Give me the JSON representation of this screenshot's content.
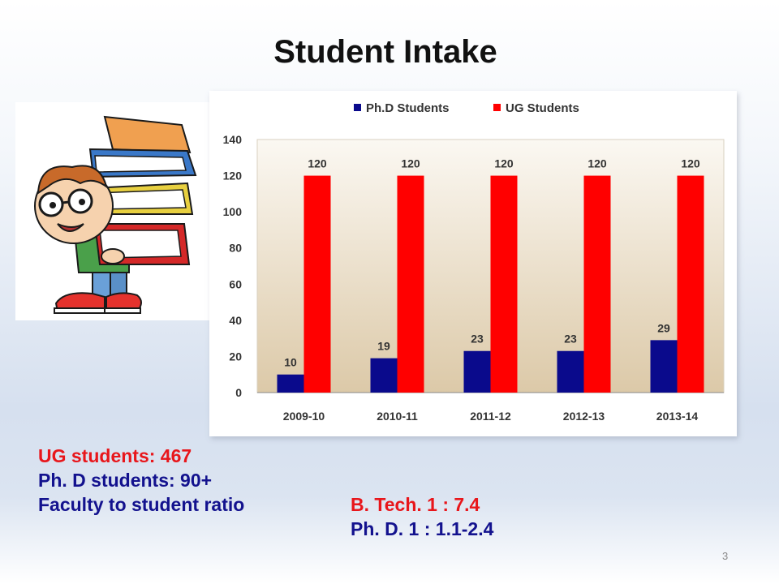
{
  "slide": {
    "title": "Student Intake",
    "page_number": "3"
  },
  "stats": {
    "ug_students": "UG students: 467",
    "phd_students": "Ph. D students: 90+",
    "ratio_label": "Faculty to student ratio",
    "btech_ratio": "B. Tech. 1 : 7.4",
    "phd_ratio": "Ph. D. 1 : 1.1-2.4"
  },
  "colors": {
    "phd_series": "#0a0a8c",
    "ug_series": "#ff0000",
    "stats_red": "#e8161b",
    "stats_blue": "#13128e"
  },
  "chart_data": {
    "type": "bar",
    "categories": [
      "2009-10",
      "2010-11",
      "2011-12",
      "2012-13",
      "2013-14"
    ],
    "series": [
      {
        "name": "Ph.D Students",
        "values": [
          10,
          19,
          23,
          23,
          29
        ]
      },
      {
        "name": "UG Students",
        "values": [
          120,
          120,
          120,
          120,
          120
        ]
      }
    ],
    "ylim": [
      0,
      140
    ],
    "yticks": [
      0,
      20,
      40,
      60,
      80,
      100,
      120,
      140
    ],
    "grid": false,
    "legend": "top",
    "data_labels": true
  }
}
